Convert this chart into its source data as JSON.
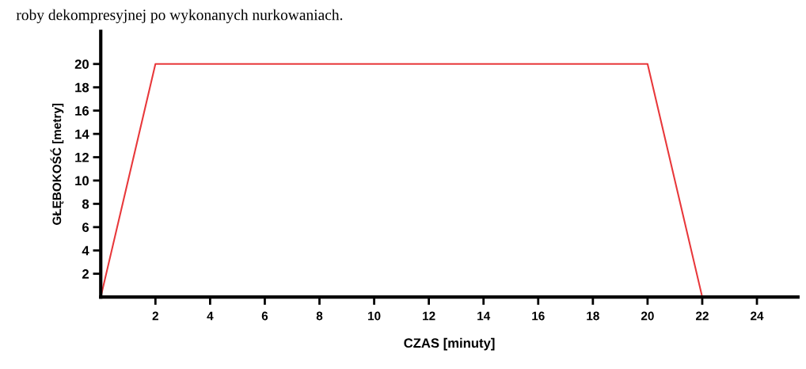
{
  "chart_data": {
    "type": "line",
    "annotations": [
      "roby dekompresyjnej po wykonanych nurkowaniach."
    ],
    "xlabel": "CZAS [minuty]",
    "ylabel": "GŁĘBOKOŚĆ [metry]",
    "x": [
      0,
      2,
      20,
      22,
      24
    ],
    "series": [
      {
        "color": "#e8383b",
        "values": [
          0,
          20,
          20,
          0,
          0
        ]
      }
    ],
    "xlim": [
      0,
      25.5
    ],
    "ylim": [
      0,
      22.8
    ],
    "xticks": [
      2,
      4,
      6,
      8,
      10,
      12,
      14,
      16,
      18,
      20,
      22,
      24
    ],
    "yticks": [
      2,
      4,
      6,
      8,
      10,
      12,
      14,
      16,
      18,
      20
    ],
    "grid": false,
    "legend": false,
    "marker": "none",
    "line_style": "solid"
  }
}
